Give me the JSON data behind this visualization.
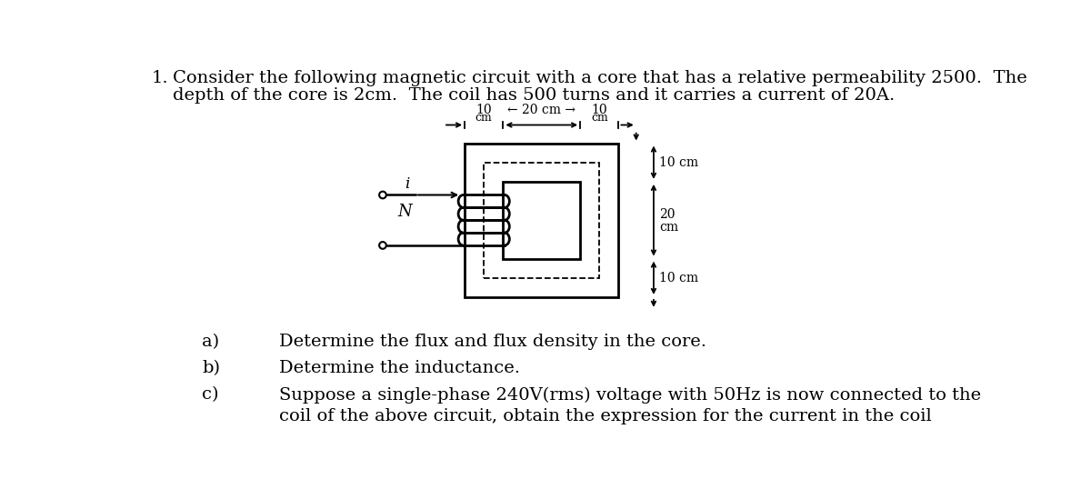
{
  "bg_color": "#ffffff",
  "text_color": "#000000",
  "title_line1": "Consider the following magnetic circuit with a core that has a relative permeability 2500.  The",
  "title_line2": "depth of the core is 2cm.  The coil has 500 turns and it carries a current of 20A.",
  "question_number": "1.",
  "part_a_label": "a)",
  "part_b_label": "b)",
  "part_c_label": "c)",
  "part_a_text": "Determine the flux and flux density in the core.",
  "part_b_text": "Determine the inductance.",
  "part_c_text1": "Suppose a single-phase 240V(rms) voltage with 50Hz is now connected to the",
  "part_c_text2": "coil of the above circuit, obtain the expression for the current in the coil",
  "label_i": "i",
  "label_N": "N"
}
